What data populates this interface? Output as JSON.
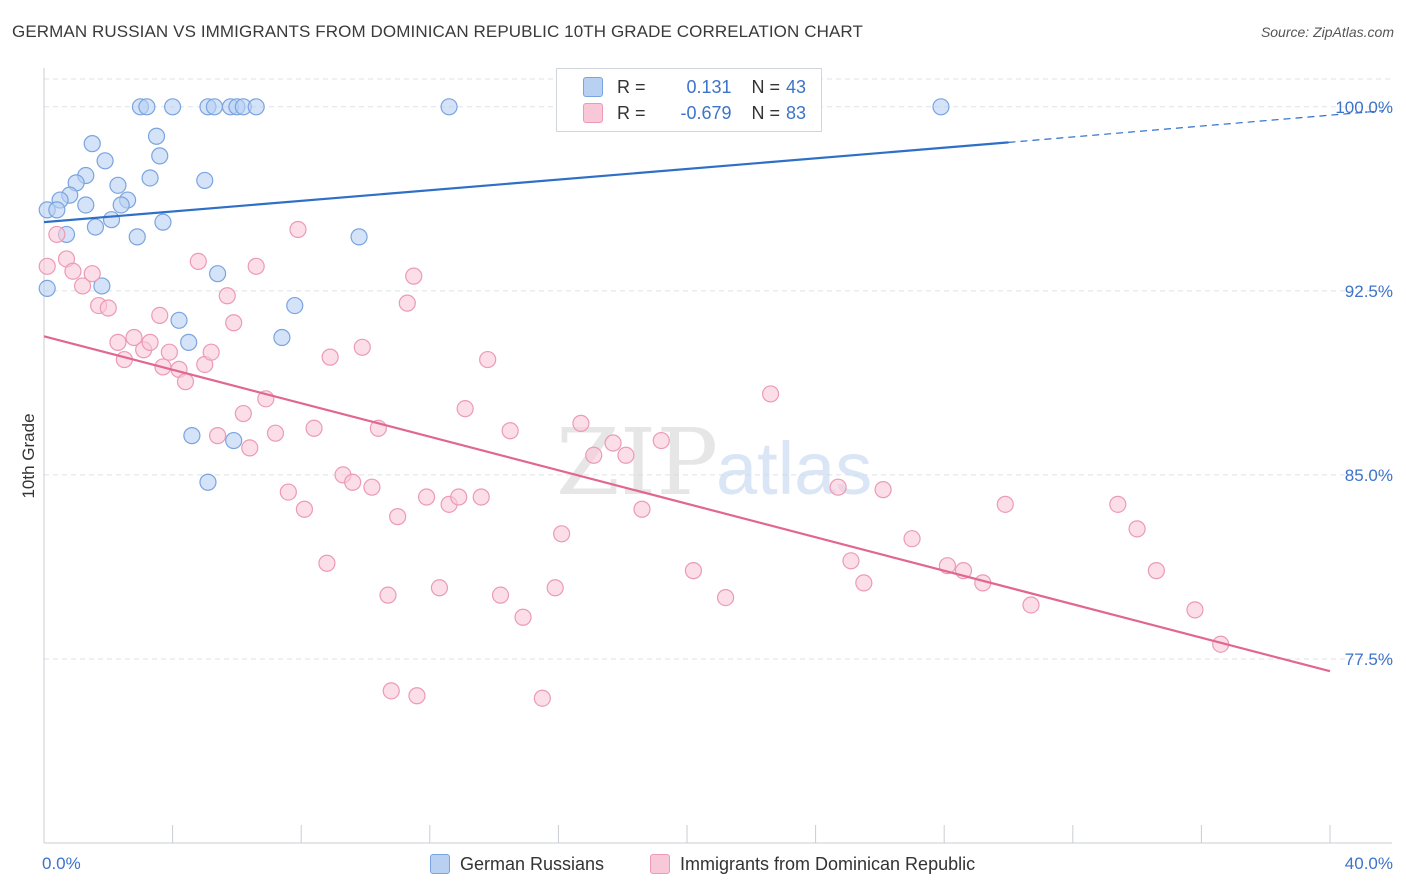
{
  "header": {
    "title": "GERMAN RUSSIAN VS IMMIGRANTS FROM DOMINICAN REPUBLIC 10TH GRADE CORRELATION CHART",
    "source": "Source: ZipAtlas.com"
  },
  "watermark": {
    "zip": "ZIP",
    "atlas": "atlas"
  },
  "legend": {
    "rows": [
      {
        "r_label": "R =",
        "r_value": "0.131",
        "n_label": "N =",
        "n_value": "43"
      },
      {
        "r_label": "R =",
        "r_value": "-0.679",
        "n_label": "N =",
        "n_value": "83"
      }
    ]
  },
  "bottom_legend": {
    "series1": "German Russians",
    "series2": "Immigrants from Dominican Republic"
  },
  "colors": {
    "blue_fill": "#b8d0f2",
    "blue_stroke": "#7aa4e0",
    "blue_line": "#2e6fc7",
    "pink_fill": "#f8c8d8",
    "pink_stroke": "#ec9ab6",
    "pink_line": "#e06792",
    "axis_label": "#3d73c9",
    "grid": "#dde2e8"
  },
  "chart_data": {
    "type": "scatter",
    "ylabel": "10th Grade",
    "xlim": [
      0,
      40
    ],
    "ylim": [
      70.0,
      101.5
    ],
    "x_tick_labels": [
      "0.0%",
      "40.0%"
    ],
    "y_ticks": [
      77.5,
      85.0,
      92.5,
      100.0
    ],
    "y_tick_labels": [
      "77.5%",
      "85.0%",
      "92.5%",
      "100.0%"
    ],
    "grid": true,
    "series": [
      {
        "name": "German Russians",
        "color": "#7aa4e0",
        "points": [
          [
            3.0,
            100.0
          ],
          [
            3.2,
            100.0
          ],
          [
            4.0,
            100.0
          ],
          [
            5.1,
            100.0
          ],
          [
            5.3,
            100.0
          ],
          [
            5.8,
            100.0
          ],
          [
            6.0,
            100.0
          ],
          [
            6.2,
            100.0
          ],
          [
            6.6,
            100.0
          ],
          [
            12.6,
            100.0
          ],
          [
            27.9,
            100.0
          ],
          [
            3.5,
            98.8
          ],
          [
            1.5,
            98.5
          ],
          [
            3.6,
            98.0
          ],
          [
            1.9,
            97.8
          ],
          [
            1.3,
            97.2
          ],
          [
            3.3,
            97.1
          ],
          [
            5.0,
            97.0
          ],
          [
            1.0,
            96.9
          ],
          [
            2.3,
            96.8
          ],
          [
            0.8,
            96.4
          ],
          [
            0.5,
            96.2
          ],
          [
            2.6,
            96.2
          ],
          [
            2.4,
            96.0
          ],
          [
            1.3,
            96.0
          ],
          [
            0.1,
            95.8
          ],
          [
            0.4,
            95.8
          ],
          [
            2.1,
            95.4
          ],
          [
            3.7,
            95.3
          ],
          [
            1.6,
            95.1
          ],
          [
            0.7,
            94.8
          ],
          [
            2.9,
            94.7
          ],
          [
            9.8,
            94.7
          ],
          [
            5.4,
            93.2
          ],
          [
            1.8,
            92.7
          ],
          [
            0.1,
            92.6
          ],
          [
            7.8,
            91.9
          ],
          [
            4.2,
            91.3
          ],
          [
            7.4,
            90.6
          ],
          [
            4.5,
            90.4
          ],
          [
            4.6,
            86.6
          ],
          [
            5.9,
            86.4
          ],
          [
            5.1,
            84.7
          ]
        ]
      },
      {
        "name": "Immigrants from Dominican Republic",
        "color": "#ec9ab6",
        "points": [
          [
            0.1,
            93.5
          ],
          [
            0.4,
            94.8
          ],
          [
            0.7,
            93.8
          ],
          [
            0.9,
            93.3
          ],
          [
            1.2,
            92.7
          ],
          [
            1.5,
            93.2
          ],
          [
            1.7,
            91.9
          ],
          [
            2.0,
            91.8
          ],
          [
            2.3,
            90.4
          ],
          [
            2.5,
            89.7
          ],
          [
            2.8,
            90.6
          ],
          [
            3.1,
            90.1
          ],
          [
            3.3,
            90.4
          ],
          [
            3.6,
            91.5
          ],
          [
            3.9,
            90.0
          ],
          [
            4.2,
            89.3
          ],
          [
            4.4,
            88.8
          ],
          [
            4.8,
            93.7
          ],
          [
            5.0,
            89.5
          ],
          [
            5.2,
            90.0
          ],
          [
            5.4,
            86.6
          ],
          [
            5.7,
            92.3
          ],
          [
            5.9,
            91.2
          ],
          [
            6.2,
            87.5
          ],
          [
            6.4,
            86.1
          ],
          [
            6.6,
            93.5
          ],
          [
            6.9,
            88.1
          ],
          [
            7.2,
            86.7
          ],
          [
            7.6,
            84.3
          ],
          [
            7.9,
            95.0
          ],
          [
            8.1,
            83.6
          ],
          [
            8.4,
            86.9
          ],
          [
            8.9,
            89.8
          ],
          [
            9.3,
            85.0
          ],
          [
            9.6,
            84.7
          ],
          [
            9.9,
            90.2
          ],
          [
            10.2,
            84.5
          ],
          [
            10.4,
            86.9
          ],
          [
            10.7,
            80.1
          ],
          [
            11.0,
            83.3
          ],
          [
            11.3,
            92.0
          ],
          [
            11.5,
            93.1
          ],
          [
            11.9,
            84.1
          ],
          [
            12.3,
            80.4
          ],
          [
            12.6,
            83.8
          ],
          [
            12.9,
            84.1
          ],
          [
            13.1,
            87.7
          ],
          [
            13.6,
            84.1
          ],
          [
            13.8,
            89.7
          ],
          [
            14.2,
            80.1
          ],
          [
            14.5,
            86.8
          ],
          [
            14.9,
            79.2
          ],
          [
            15.5,
            75.9
          ],
          [
            15.9,
            80.4
          ],
          [
            16.1,
            82.6
          ],
          [
            16.7,
            87.1
          ],
          [
            17.1,
            85.8
          ],
          [
            17.7,
            86.3
          ],
          [
            18.1,
            85.8
          ],
          [
            18.6,
            83.6
          ],
          [
            19.2,
            86.4
          ],
          [
            20.2,
            81.1
          ],
          [
            21.2,
            80.0
          ],
          [
            22.6,
            88.3
          ],
          [
            24.7,
            84.5
          ],
          [
            25.1,
            81.5
          ],
          [
            25.5,
            80.6
          ],
          [
            26.1,
            84.4
          ],
          [
            27.0,
            82.4
          ],
          [
            28.1,
            81.3
          ],
          [
            28.6,
            81.1
          ],
          [
            29.2,
            80.6
          ],
          [
            29.9,
            83.8
          ],
          [
            30.7,
            79.7
          ],
          [
            33.4,
            83.8
          ],
          [
            34.0,
            82.8
          ],
          [
            34.6,
            81.1
          ],
          [
            35.8,
            79.5
          ],
          [
            36.6,
            78.1
          ],
          [
            10.8,
            76.2
          ],
          [
            11.6,
            76.0
          ],
          [
            3.7,
            89.4
          ],
          [
            8.8,
            81.4
          ]
        ]
      }
    ],
    "trend_lines": [
      {
        "series": "German Russians",
        "x_start": 0,
        "y_start": 95.3,
        "x_solid_end": 30.0,
        "y_solid_end": 98.55,
        "x_end": 40,
        "y_end": 99.6,
        "dashed_after": 30.0
      },
      {
        "series": "Immigrants from Dominican Republic",
        "x_start": 0,
        "y_start": 90.65,
        "x_end": 40,
        "y_end": 77.0
      }
    ]
  }
}
